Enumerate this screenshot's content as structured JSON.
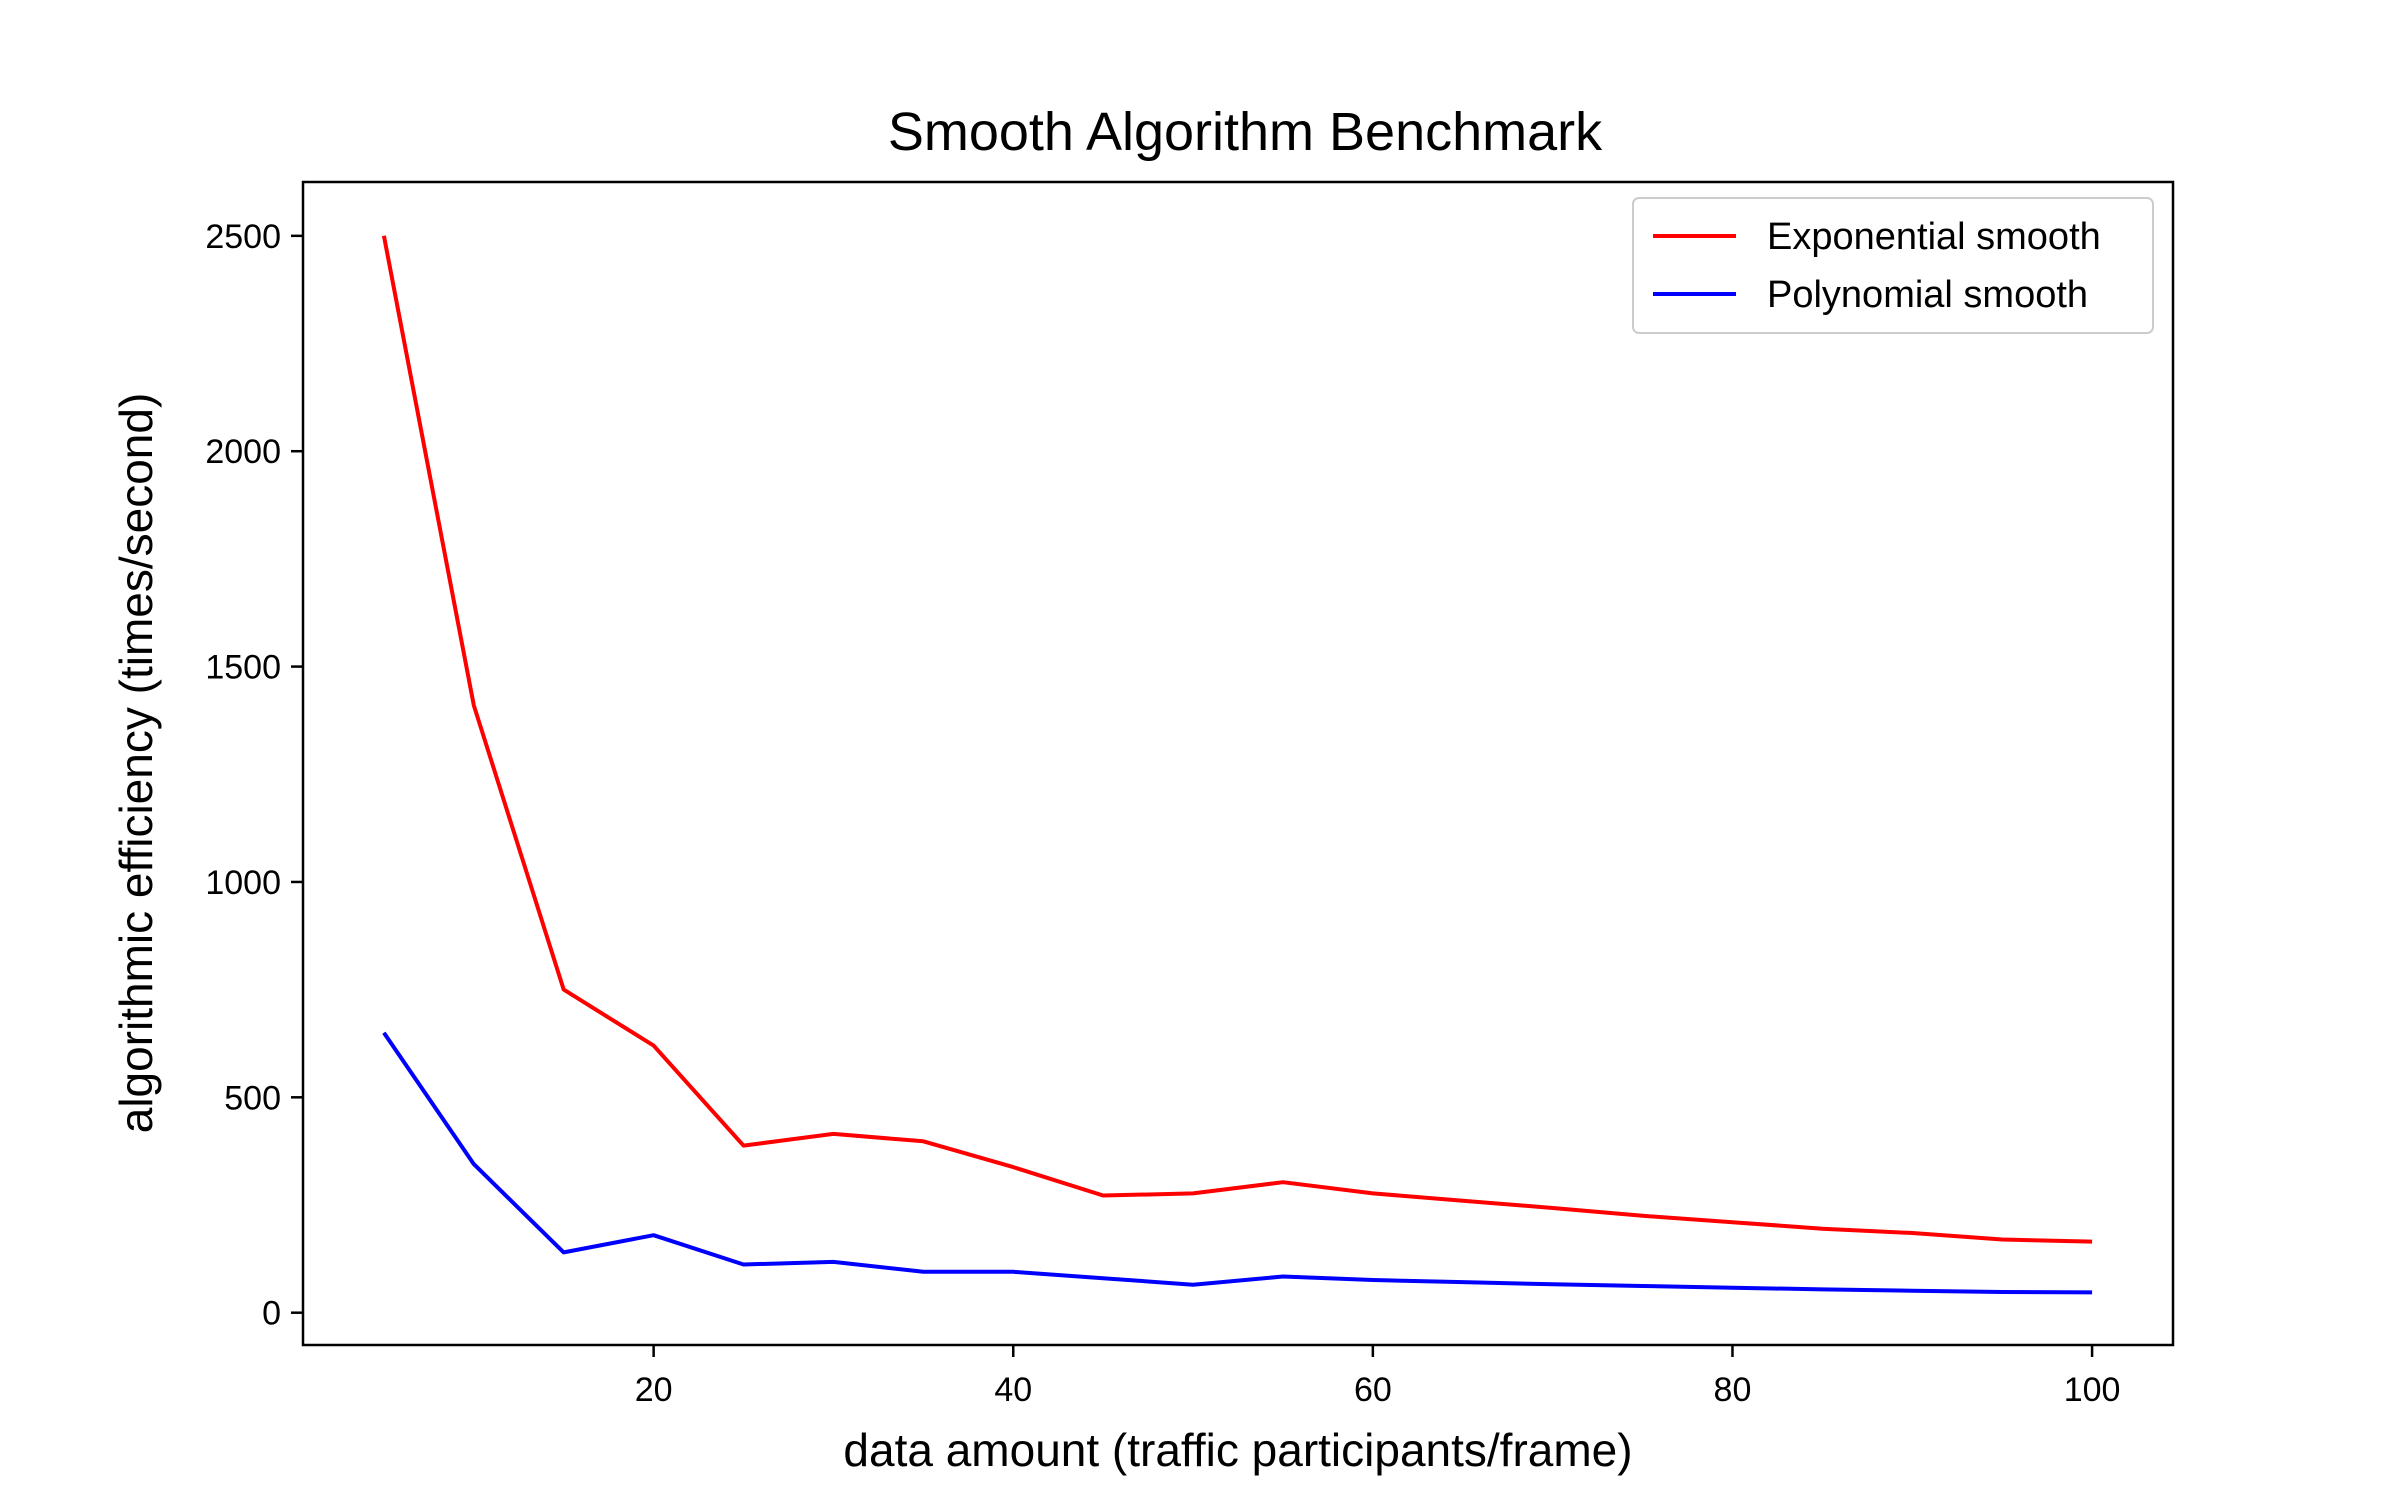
{
  "chart_data": {
    "type": "line",
    "title": "Smooth Algorithm Benchmark",
    "xlabel": "data amount (traffic participants/frame)",
    "ylabel": "algorithmic efficiency (times/second)",
    "xlim": [
      0.5,
      104.5
    ],
    "ylim": [
      -75,
      2625
    ],
    "xticks": [
      20,
      40,
      60,
      80,
      100
    ],
    "yticks": [
      0,
      500,
      1000,
      1500,
      2000,
      2500
    ],
    "grid": false,
    "legend_position": "top-right",
    "x": [
      5,
      10,
      15,
      20,
      25,
      30,
      35,
      40,
      45,
      50,
      55,
      60,
      65,
      70,
      75,
      80,
      85,
      90,
      95,
      100
    ],
    "series": [
      {
        "name": "Exponential smooth",
        "color": "#ff0000",
        "values": [
          2500,
          1410,
          750,
          620,
          388,
          415,
          398,
          338,
          272,
          277,
          303,
          277,
          260,
          243,
          225,
          210,
          195,
          185,
          170,
          165
        ]
      },
      {
        "name": "Polynomial smooth",
        "color": "#0000ff",
        "values": [
          650,
          345,
          140,
          180,
          112,
          118,
          95,
          95,
          80,
          65,
          84,
          76,
          71,
          66,
          62,
          58,
          54,
          51,
          48,
          47
        ]
      }
    ]
  }
}
